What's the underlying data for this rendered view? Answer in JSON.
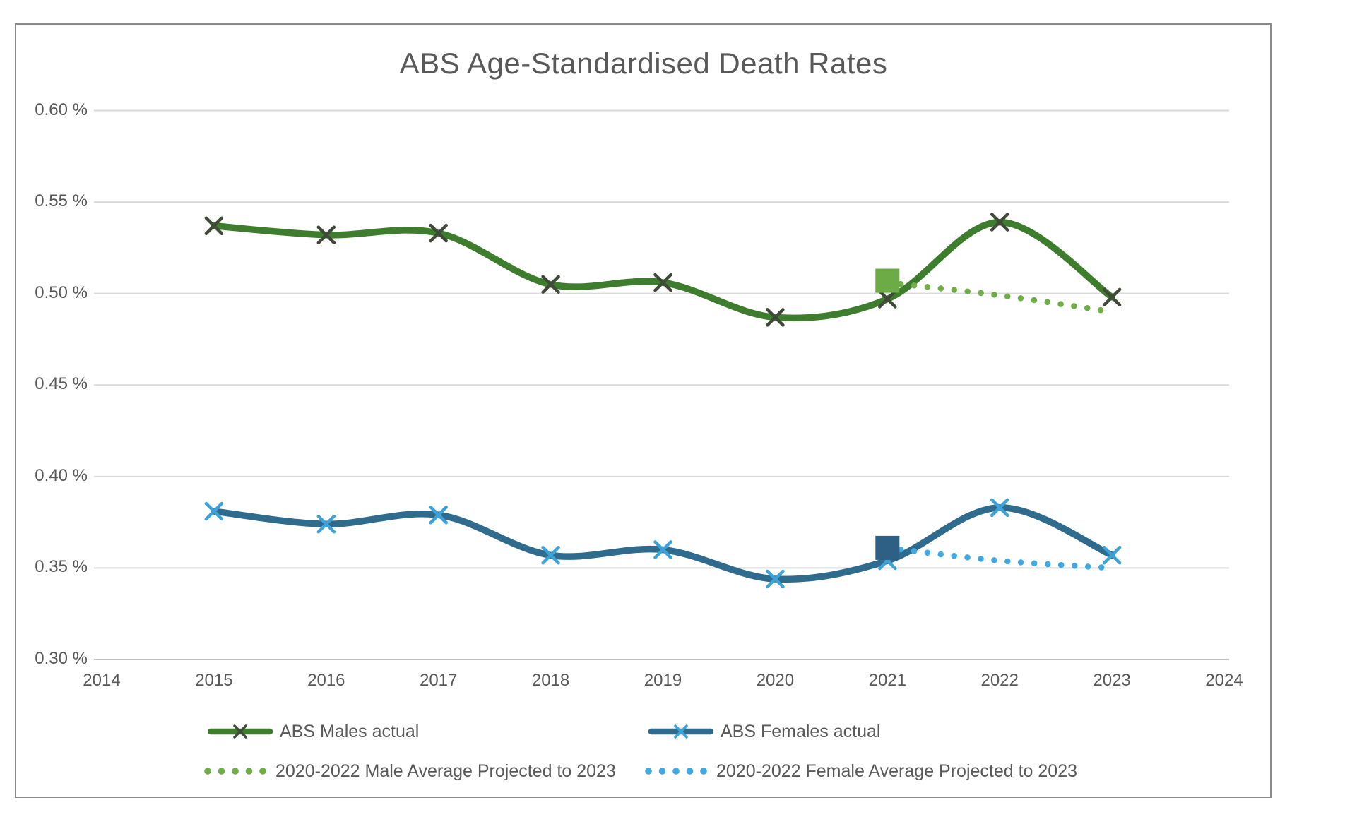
{
  "title": "ABS Age-Standardised Death Rates",
  "chart_data": {
    "type": "line",
    "title": "ABS Age-Standardised Death Rates",
    "units": "percent",
    "grid": true,
    "legend_position": "bottom",
    "x_axis": {
      "min": 2014,
      "max": 2024,
      "ticks": [
        2014,
        2015,
        2016,
        2017,
        2018,
        2019,
        2020,
        2021,
        2022,
        2023,
        2024
      ]
    },
    "y_axis": {
      "min": 0.3,
      "max": 0.6,
      "ticks": [
        0.6,
        0.55,
        0.5,
        0.45,
        0.4,
        0.35,
        0.3
      ],
      "tick_labels": [
        "0.60 %",
        "0.55 %",
        "0.50 %",
        "0.45 %",
        "0.40 %",
        "0.35 %",
        "0.30 %"
      ]
    },
    "series": [
      {
        "name": "ABS Males actual",
        "style": "solid",
        "color": "#3e7d2e",
        "marker": "x",
        "marker_color": "#404a38",
        "x": [
          2015,
          2016,
          2017,
          2018,
          2019,
          2020,
          2021,
          2022,
          2023
        ],
        "values": [
          0.537,
          0.532,
          0.533,
          0.505,
          0.506,
          0.487,
          0.497,
          0.539,
          0.498
        ]
      },
      {
        "name": "ABS Females actual",
        "style": "solid",
        "color": "#2e6b8c",
        "marker": "x",
        "marker_color": "#3da2d8",
        "x": [
          2015,
          2016,
          2017,
          2018,
          2019,
          2020,
          2021,
          2022,
          2023
        ],
        "values": [
          0.381,
          0.374,
          0.379,
          0.357,
          0.36,
          0.344,
          0.354,
          0.383,
          0.357
        ]
      },
      {
        "name": "2020-2022 Male Average Projected to 2023",
        "style": "dotted",
        "color": "#70ad47",
        "marker": "none",
        "x": [
          2021,
          2022,
          2023
        ],
        "values": [
          0.506,
          0.499,
          0.49
        ]
      },
      {
        "name": "2020-2022 Female Average Projected to 2023",
        "style": "dotted",
        "color": "#41a9e1",
        "marker": "none",
        "x": [
          2021,
          2022,
          2023
        ],
        "values": [
          0.361,
          0.354,
          0.35
        ]
      }
    ],
    "annotations": [
      {
        "type": "square",
        "name": "male-projection-anchor",
        "x": 2021,
        "value": 0.507,
        "color": "#6cab45"
      },
      {
        "type": "square",
        "name": "female-projection-anchor",
        "x": 2021,
        "value": 0.361,
        "color": "#2d6084"
      }
    ]
  },
  "legend": {
    "items": [
      {
        "label": "ABS Males actual",
        "swatch": "line-x",
        "color": "#3e7d2e",
        "marker_color": "#404a38"
      },
      {
        "label": "ABS Females actual",
        "swatch": "line-x",
        "color": "#2e6b8c",
        "marker_color": "#3da2d8"
      },
      {
        "label": "2020-2022 Male Average Projected to 2023",
        "swatch": "dots",
        "color": "#70ad47"
      },
      {
        "label": "2020-2022 Female Average Projected to 2023",
        "swatch": "dots",
        "color": "#41a9e1"
      }
    ]
  },
  "colors": {
    "text": "#595959",
    "gridline": "#d9d9d9",
    "axis_line": "#bfbfbf",
    "border": "#8a8a8a",
    "background": "#ffffff"
  }
}
